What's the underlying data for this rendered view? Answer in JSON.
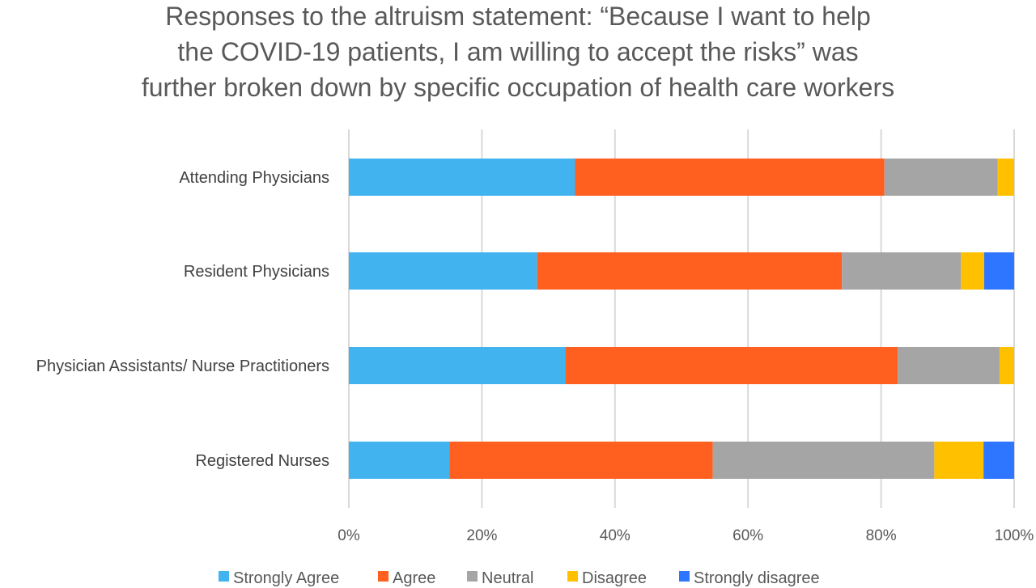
{
  "chart_data": {
    "type": "bar",
    "orientation": "horizontal",
    "stacked": "percent",
    "title_lines": [
      "Responses to the altruism statement: “Because I want to help",
      "the COVID-19 patients, I am willing to accept the risks” was",
      "further broken down by specific occupation of health care workers"
    ],
    "categories": [
      "Attending Physicians",
      "Resident Physicians",
      "Physician Assistants/ Nurse Practitioners",
      "Registered Nurses"
    ],
    "series": [
      {
        "name": "Strongly Agree",
        "color": "#41b4f0",
        "values": [
          34,
          28.3,
          32.5,
          15.1
        ]
      },
      {
        "name": "Agree",
        "color": "#ff5f1f",
        "values": [
          46.5,
          45.8,
          50.0,
          39.6
        ]
      },
      {
        "name": "Neutral",
        "color": "#a5a5a5",
        "values": [
          17.0,
          17.9,
          15.3,
          33.3
        ]
      },
      {
        "name": "Disagree",
        "color": "#ffc000",
        "values": [
          2.5,
          3.5,
          2.2,
          7.4
        ]
      },
      {
        "name": "Strongly disagree",
        "color": "#2e75ff",
        "values": [
          0,
          4.5,
          0,
          4.6
        ]
      }
    ],
    "xlim": [
      0,
      100
    ],
    "x_ticks": [
      0,
      20,
      40,
      60,
      80,
      100
    ],
    "x_tick_labels": [
      "0%",
      "20%",
      "40%",
      "60%",
      "80%",
      "100%"
    ],
    "xlabel": "",
    "ylabel": "",
    "grid": "vertical",
    "legend_position": "bottom"
  }
}
